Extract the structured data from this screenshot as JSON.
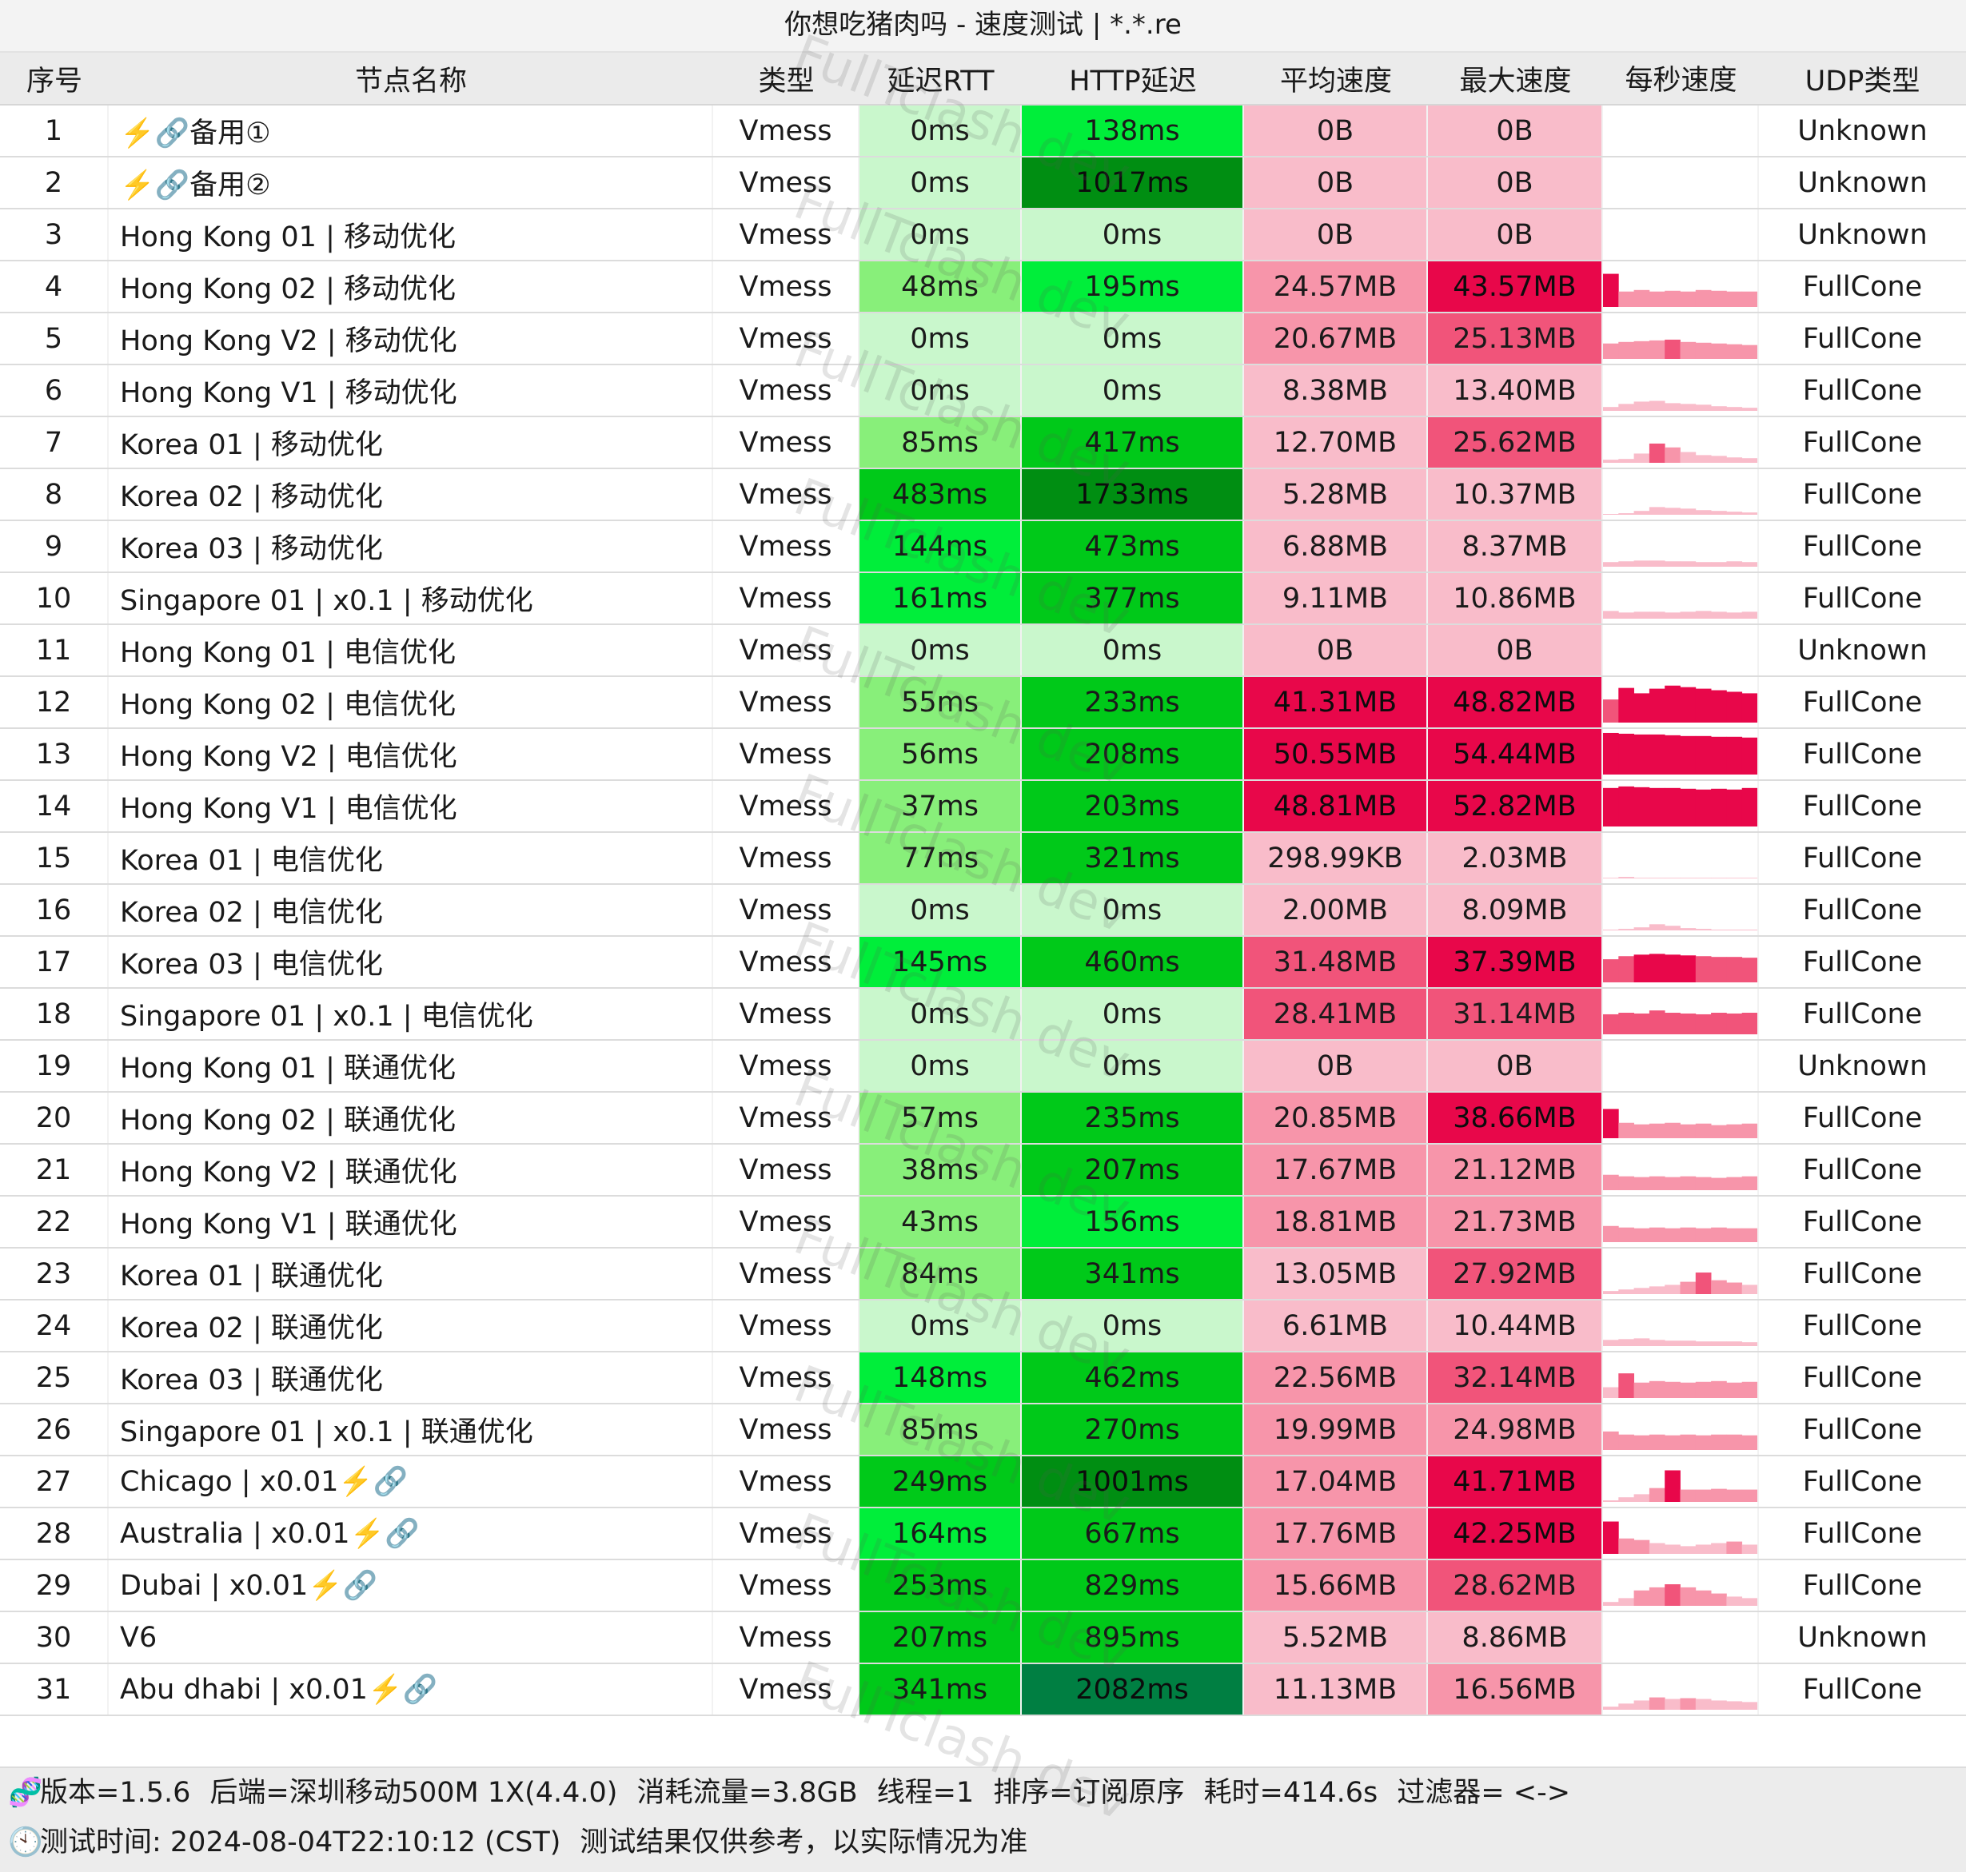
{
  "title": "你想吃猪肉吗 - 速度测试 | *.*.re",
  "headers": [
    "序号",
    "节点名称",
    "类型",
    "延迟RTT",
    "HTTP延迟",
    "平均速度",
    "最大速度",
    "每秒速度",
    "UDP类型"
  ],
  "rows": [
    {
      "idx": "1",
      "name": "⚡️🔗备用①",
      "type": "Vmess",
      "rtt": "0ms",
      "http": "138ms",
      "avg": "0B",
      "max": "0B",
      "speeds": [],
      "udp": "Unknown"
    },
    {
      "idx": "2",
      "name": "⚡️🔗备用②",
      "type": "Vmess",
      "rtt": "0ms",
      "http": "1017ms",
      "avg": "0B",
      "max": "0B",
      "speeds": [],
      "udp": "Unknown"
    },
    {
      "idx": "3",
      "name": "Hong Kong 01 | 移动优化",
      "type": "Vmess",
      "rtt": "0ms",
      "http": "0ms",
      "avg": "0B",
      "max": "0B",
      "speeds": [],
      "udp": "Unknown"
    },
    {
      "idx": "4",
      "name": "Hong Kong 02 | 移动优化",
      "type": "Vmess",
      "rtt": "48ms",
      "http": "195ms",
      "avg": "24.57MB",
      "max": "43.57MB",
      "speeds": [
        43,
        20,
        22,
        20,
        21,
        20,
        22,
        21,
        20,
        20
      ],
      "udp": "FullCone"
    },
    {
      "idx": "5",
      "name": "Hong Kong V2 | 移动优化",
      "type": "Vmess",
      "rtt": "0ms",
      "http": "0ms",
      "avg": "20.67MB",
      "max": "25.13MB",
      "speeds": [
        20,
        22,
        23,
        24,
        25,
        22,
        21,
        20,
        19,
        18
      ],
      "udp": "FullCone"
    },
    {
      "idx": "6",
      "name": "Hong Kong V1 | 移动优化",
      "type": "Vmess",
      "rtt": "0ms",
      "http": "0ms",
      "avg": "8.38MB",
      "max": "13.40MB",
      "speeds": [
        5,
        9,
        12,
        13,
        10,
        9,
        8,
        6,
        5,
        4
      ],
      "udp": "FullCone"
    },
    {
      "idx": "7",
      "name": "Korea 01 | 移动优化",
      "type": "Vmess",
      "rtt": "85ms",
      "http": "417ms",
      "avg": "12.70MB",
      "max": "25.62MB",
      "speeds": [
        4,
        5,
        12,
        25,
        20,
        14,
        10,
        9,
        7,
        6
      ],
      "udp": "FullCone"
    },
    {
      "idx": "8",
      "name": "Korea 02 | 移动优化",
      "type": "Vmess",
      "rtt": "483ms",
      "http": "1733ms",
      "avg": "5.28MB",
      "max": "10.37MB",
      "speeds": [
        1,
        2,
        5,
        10,
        9,
        8,
        6,
        5,
        4,
        3
      ],
      "udp": "FullCone"
    },
    {
      "idx": "9",
      "name": "Korea 03 | 移动优化",
      "type": "Vmess",
      "rtt": "144ms",
      "http": "473ms",
      "avg": "6.88MB",
      "max": "8.37MB",
      "speeds": [
        6,
        7,
        8,
        8,
        7,
        7,
        6,
        6,
        7,
        6
      ],
      "udp": "FullCone"
    },
    {
      "idx": "10",
      "name": "Singapore 01 | x0.1 | 移动优化",
      "type": "Vmess",
      "rtt": "161ms",
      "http": "377ms",
      "avg": "9.11MB",
      "max": "10.86MB",
      "speeds": [
        10,
        8,
        9,
        9,
        8,
        9,
        10,
        9,
        8,
        9
      ],
      "udp": "FullCone"
    },
    {
      "idx": "11",
      "name": "Hong Kong 01 | 电信优化",
      "type": "Vmess",
      "rtt": "0ms",
      "http": "0ms",
      "avg": "0B",
      "max": "0B",
      "speeds": [],
      "udp": "Unknown"
    },
    {
      "idx": "12",
      "name": "Hong Kong 02 | 电信优化",
      "type": "Vmess",
      "rtt": "55ms",
      "http": "233ms",
      "avg": "41.31MB",
      "max": "48.82MB",
      "speeds": [
        30,
        45,
        38,
        44,
        48,
        46,
        44,
        42,
        40,
        38
      ],
      "udp": "FullCone"
    },
    {
      "idx": "13",
      "name": "Hong Kong V2 | 电信优化",
      "type": "Vmess",
      "rtt": "56ms",
      "http": "208ms",
      "avg": "50.55MB",
      "max": "54.44MB",
      "speeds": [
        54,
        53,
        52,
        52,
        51,
        50,
        50,
        49,
        49,
        48
      ],
      "udp": "FullCone"
    },
    {
      "idx": "14",
      "name": "Hong Kong V1 | 电信优化",
      "type": "Vmess",
      "rtt": "37ms",
      "http": "203ms",
      "avg": "48.81MB",
      "max": "52.82MB",
      "speeds": [
        50,
        52,
        51,
        50,
        50,
        49,
        48,
        49,
        48,
        50
      ],
      "udp": "FullCone"
    },
    {
      "idx": "15",
      "name": "Korea 01 | 电信优化",
      "type": "Vmess",
      "rtt": "77ms",
      "http": "321ms",
      "avg": "298.99KB",
      "max": "2.03MB",
      "speeds": [
        0.3,
        2,
        0.5,
        0.3,
        0.2,
        0.2,
        0.2,
        0.1,
        0.1,
        0.1
      ],
      "udp": "FullCone"
    },
    {
      "idx": "16",
      "name": "Korea 02 | 电信优化",
      "type": "Vmess",
      "rtt": "0ms",
      "http": "0ms",
      "avg": "2.00MB",
      "max": "8.09MB",
      "speeds": [
        1,
        2,
        4,
        8,
        6,
        3,
        2,
        1,
        1,
        1
      ],
      "udp": "FullCone"
    },
    {
      "idx": "17",
      "name": "Korea 03 | 电信优化",
      "type": "Vmess",
      "rtt": "145ms",
      "http": "460ms",
      "avg": "31.48MB",
      "max": "37.39MB",
      "speeds": [
        30,
        34,
        36,
        37,
        36,
        35,
        34,
        33,
        33,
        32
      ],
      "udp": "FullCone"
    },
    {
      "idx": "18",
      "name": "Singapore 01 | x0.1 | 电信优化",
      "type": "Vmess",
      "rtt": "0ms",
      "http": "0ms",
      "avg": "28.41MB",
      "max": "31.14MB",
      "speeds": [
        26,
        28,
        27,
        31,
        28,
        27,
        26,
        28,
        27,
        28
      ],
      "udp": "FullCone"
    },
    {
      "idx": "19",
      "name": "Hong Kong 01 | 联通优化",
      "type": "Vmess",
      "rtt": "0ms",
      "http": "0ms",
      "avg": "0B",
      "max": "0B",
      "speeds": [],
      "udp": "Unknown"
    },
    {
      "idx": "20",
      "name": "Hong Kong 02 | 联通优化",
      "type": "Vmess",
      "rtt": "57ms",
      "http": "235ms",
      "avg": "20.85MB",
      "max": "38.66MB",
      "speeds": [
        38,
        20,
        18,
        19,
        20,
        18,
        19,
        17,
        18,
        19
      ],
      "udp": "FullCone"
    },
    {
      "idx": "21",
      "name": "Hong Kong V2 | 联通优化",
      "type": "Vmess",
      "rtt": "38ms",
      "http": "207ms",
      "avg": "17.67MB",
      "max": "21.12MB",
      "speeds": [
        20,
        18,
        17,
        18,
        17,
        18,
        17,
        16,
        17,
        18
      ],
      "udp": "FullCone"
    },
    {
      "idx": "22",
      "name": "Hong Kong V1 | 联通优化",
      "type": "Vmess",
      "rtt": "43ms",
      "http": "156ms",
      "avg": "18.81MB",
      "max": "21.73MB",
      "speeds": [
        21,
        19,
        18,
        19,
        18,
        19,
        18,
        19,
        18,
        18
      ],
      "udp": "FullCone"
    },
    {
      "idx": "23",
      "name": "Korea 01 | 联通优化",
      "type": "Vmess",
      "rtt": "84ms",
      "http": "341ms",
      "avg": "13.05MB",
      "max": "27.92MB",
      "speeds": [
        4,
        6,
        8,
        10,
        12,
        16,
        28,
        18,
        15,
        12
      ],
      "udp": "FullCone"
    },
    {
      "idx": "24",
      "name": "Korea 02 | 联通优化",
      "type": "Vmess",
      "rtt": "0ms",
      "http": "0ms",
      "avg": "6.61MB",
      "max": "10.44MB",
      "speeds": [
        8,
        9,
        10,
        8,
        7,
        7,
        6,
        6,
        6,
        5
      ],
      "udp": "FullCone"
    },
    {
      "idx": "25",
      "name": "Korea 03 | 联通优化",
      "type": "Vmess",
      "rtt": "148ms",
      "http": "462ms",
      "avg": "22.56MB",
      "max": "32.14MB",
      "speeds": [
        14,
        32,
        20,
        22,
        21,
        20,
        21,
        22,
        20,
        21
      ],
      "udp": "FullCone"
    },
    {
      "idx": "26",
      "name": "Singapore 01 | x0.1 | 联通优化",
      "type": "Vmess",
      "rtt": "85ms",
      "http": "270ms",
      "avg": "19.99MB",
      "max": "24.98MB",
      "speeds": [
        24,
        20,
        19,
        20,
        19,
        20,
        19,
        20,
        20,
        19
      ],
      "udp": "FullCone"
    },
    {
      "idx": "27",
      "name": "Chicago | x0.01⚡️🔗",
      "type": "Vmess",
      "rtt": "249ms",
      "http": "1001ms",
      "avg": "17.04MB",
      "max": "41.71MB",
      "speeds": [
        2,
        6,
        10,
        18,
        41,
        16,
        16,
        17,
        16,
        16
      ],
      "udp": "FullCone"
    },
    {
      "idx": "28",
      "name": "Australia | x0.01⚡️🔗",
      "type": "Vmess",
      "rtt": "164ms",
      "http": "667ms",
      "avg": "17.76MB",
      "max": "42.25MB",
      "speeds": [
        42,
        20,
        18,
        14,
        12,
        10,
        12,
        14,
        16,
        12
      ],
      "udp": "FullCone"
    },
    {
      "idx": "29",
      "name": "Dubai | x0.01⚡️🔗",
      "type": "Vmess",
      "rtt": "253ms",
      "http": "829ms",
      "avg": "15.66MB",
      "max": "28.62MB",
      "speeds": [
        5,
        10,
        20,
        24,
        28,
        24,
        20,
        16,
        12,
        10
      ],
      "udp": "FullCone"
    },
    {
      "idx": "30",
      "name": "V6",
      "type": "Vmess",
      "rtt": "207ms",
      "http": "895ms",
      "avg": "5.52MB",
      "max": "8.86MB",
      "speeds": [],
      "udp": "Unknown"
    },
    {
      "idx": "31",
      "name": "Abu dhabi | x0.01⚡️🔗",
      "type": "Vmess",
      "rtt": "341ms",
      "http": "2082ms",
      "avg": "11.13MB",
      "max": "16.56MB",
      "speeds": [
        4,
        8,
        12,
        16,
        14,
        15,
        14,
        12,
        11,
        10
      ],
      "udp": "FullCone"
    }
  ],
  "footer": {
    "line1": [
      "版本=1.5.6",
      "后端=深圳移动500M 1X(4.4.0)",
      "消耗流量=3.8GB",
      "线程=1",
      "排序=订阅原序",
      "耗时=414.6s",
      "过滤器= <->"
    ],
    "line1_icon": "🧬",
    "line2": [
      "测试时间: 2024-08-04T22:10:12 (CST)",
      "测试结果仅供参考，以实际情况为准"
    ],
    "line2_icon": "🕙"
  },
  "watermark": "FullTclash dev",
  "colors": {
    "rtt_zero": "#c9f7cc",
    "green_light": "#88ef7a",
    "green_bright": "#00ee3a",
    "green_mid": "#00c919",
    "green_dark": "#008e12",
    "green_darkest": "#007f42",
    "speed_pale": "#f9bcca",
    "speed_light": "#f795aa",
    "speed_mid": "#f1547a",
    "speed_strong": "#e8074a"
  }
}
